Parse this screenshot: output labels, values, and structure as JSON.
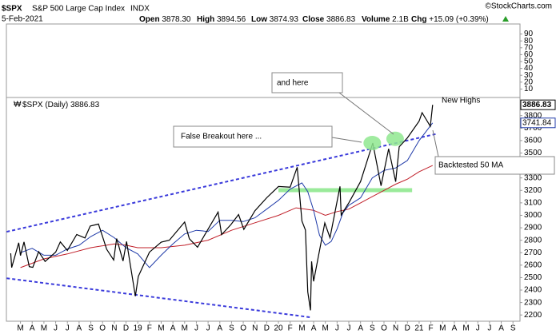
{
  "chart_data": {
    "type": "stock",
    "title": "$SPX",
    "subtitle": "S&P 500 Large Cap Index",
    "exchange": "INDX",
    "date": "5-Feb-2021",
    "source": "©StockCharts.com",
    "stats": [
      {
        "label": "Open",
        "value": "3878.30"
      },
      {
        "label": "High",
        "value": "3894.56"
      },
      {
        "label": "Low",
        "value": "3874.93"
      },
      {
        "label": "Close",
        "value": "3886.83"
      },
      {
        "label": "Volume",
        "value": "2.1B"
      },
      {
        "label": "Chg",
        "value": "+15.09 (+0.39%)"
      }
    ],
    "top_panel": {
      "ylim": [
        0,
        100
      ],
      "yticks": [
        90,
        80,
        70,
        60,
        50,
        40,
        30,
        20,
        10
      ]
    },
    "xlim": [
      0.8,
      44.6
    ],
    "xticks": [
      {
        "value": 2,
        "label": "M"
      },
      {
        "value": 3,
        "label": "A"
      },
      {
        "value": 4,
        "label": "M"
      },
      {
        "value": 5,
        "label": "J"
      },
      {
        "value": 6,
        "label": "J"
      },
      {
        "value": 7,
        "label": "A"
      },
      {
        "value": 8,
        "label": "S"
      },
      {
        "value": 9,
        "label": "O"
      },
      {
        "value": 10,
        "label": "N"
      },
      {
        "value": 11,
        "label": "D"
      },
      {
        "value": 12,
        "label": "19"
      },
      {
        "value": 13,
        "label": "F"
      },
      {
        "value": 14,
        "label": "M"
      },
      {
        "value": 15,
        "label": "A"
      },
      {
        "value": 16,
        "label": "M"
      },
      {
        "value": 17,
        "label": "J"
      },
      {
        "value": 18,
        "label": "J"
      },
      {
        "value": 19,
        "label": "A"
      },
      {
        "value": 20,
        "label": "S"
      },
      {
        "value": 21,
        "label": "O"
      },
      {
        "value": 22,
        "label": "N"
      },
      {
        "value": 23,
        "label": "D"
      },
      {
        "value": 24,
        "label": "20"
      },
      {
        "value": 25,
        "label": "F"
      },
      {
        "value": 26,
        "label": "M"
      },
      {
        "value": 27,
        "label": "A"
      },
      {
        "value": 28,
        "label": "M"
      },
      {
        "value": 29,
        "label": "J"
      },
      {
        "value": 30,
        "label": "J"
      },
      {
        "value": 31,
        "label": "A"
      },
      {
        "value": 32,
        "label": "S"
      },
      {
        "value": 33,
        "label": "O"
      },
      {
        "value": 34,
        "label": "N"
      },
      {
        "value": 35,
        "label": "D"
      },
      {
        "value": 36,
        "label": "21"
      },
      {
        "value": 37,
        "label": "F"
      },
      {
        "value": 38,
        "label": "M"
      },
      {
        "value": 39,
        "label": "A"
      },
      {
        "value": 40,
        "label": "M"
      },
      {
        "value": 41,
        "label": "J"
      },
      {
        "value": 42,
        "label": "J"
      },
      {
        "value": 43,
        "label": "A"
      },
      {
        "value": 44,
        "label": "S"
      }
    ],
    "ylim": [
      2150,
      3920
    ],
    "yticks": [
      3800,
      3700,
      3600,
      3500,
      3400,
      3300,
      3200,
      3100,
      3000,
      2900,
      2800,
      2700,
      2600,
      2500,
      2400,
      2300,
      2200
    ],
    "series": [
      {
        "name": "$SPX (Daily)",
        "color": "#000000",
        "x": [
          1.17,
          1.25,
          1.85,
          2.0,
          2.3,
          2.75,
          3.05,
          3.55,
          4.1,
          5.0,
          5.4,
          6.0,
          6.8,
          7.5,
          7.95,
          8.65,
          9.35,
          9.95,
          10.2,
          10.75,
          11.05,
          11.8,
          12.05,
          13.0,
          14.0,
          14.7,
          16.0,
          16.4,
          17.1,
          18.85,
          19.15,
          19.95,
          20.6,
          21.05,
          22.0,
          23.0,
          24.0,
          25.0,
          25.6,
          26.0,
          26.3,
          26.5,
          26.73,
          26.83,
          27.0,
          27.95,
          28.4,
          29.25,
          29.35,
          30.0,
          31.0,
          32.05,
          32.75,
          33.4,
          34.0,
          34.3,
          35.0,
          36.0,
          36.25,
          36.95,
          37.15
        ],
        "values": [
          2695,
          2581,
          2780,
          2677,
          2786,
          2588,
          2582,
          2708,
          2630,
          2705,
          2787,
          2718,
          2846,
          2818,
          2914,
          2930,
          2728,
          2641,
          2813,
          2633,
          2790,
          2351,
          2510,
          2704,
          2784,
          2800,
          2946,
          2812,
          2744,
          3026,
          2845,
          2926,
          3006,
          2887,
          3037,
          3141,
          3231,
          3226,
          3386,
          2954,
          2882,
          2386,
          2237,
          2630,
          2470,
          2939,
          2820,
          3232,
          3002,
          3100,
          3271,
          3580,
          3237,
          3534,
          3270,
          3550,
          3622,
          3756,
          3824,
          3714,
          3886.83
        ]
      },
      {
        "color": "#1f3aa8",
        "x": [
          2,
          3,
          4,
          5,
          6,
          7,
          8,
          9,
          10,
          11,
          12,
          13,
          14,
          15,
          16,
          17,
          18,
          19,
          20,
          21,
          22,
          23,
          24,
          25,
          26,
          26.5,
          27,
          27.5,
          28,
          28.5,
          29,
          29.5,
          30,
          31,
          32,
          33,
          34,
          35,
          36,
          37.15
        ],
        "values": [
          2700,
          2735,
          2680,
          2680,
          2730,
          2760,
          2830,
          2880,
          2820,
          2740,
          2690,
          2580,
          2680,
          2770,
          2850,
          2880,
          2870,
          2960,
          2960,
          2950,
          2980,
          3050,
          3120,
          3210,
          3260,
          3190,
          3040,
          2840,
          2760,
          2790,
          2890,
          3020,
          3080,
          3140,
          3300,
          3360,
          3380,
          3440,
          3600,
          3741.84
        ]
      },
      {
        "color": "#c0202a",
        "x": [
          2,
          4,
          6,
          8,
          10,
          11,
          12,
          14,
          16,
          18,
          20,
          22,
          24,
          25.5,
          27,
          28,
          29,
          30,
          31,
          32,
          33,
          34,
          35,
          36,
          37.15
        ],
        "values": [
          2580,
          2650,
          2690,
          2740,
          2770,
          2760,
          2740,
          2740,
          2760,
          2800,
          2880,
          2940,
          3000,
          3060,
          3040,
          3000,
          3030,
          3050,
          3100,
          3150,
          3200,
          3250,
          3290,
          3350,
          3400
        ]
      }
    ],
    "channel_lines": {
      "color": "#3a3adb",
      "lines": [
        {
          "x": [
            0.82,
            37.4
          ],
          "y": [
            2868,
            3652
          ]
        },
        {
          "x": [
            0.82,
            26.86
          ],
          "y": [
            2495,
            2180
          ]
        }
      ]
    },
    "support_line": {
      "color": "#8fe88f",
      "x": [
        24,
        35.4
      ],
      "y": [
        3202,
        3202
      ]
    },
    "highlights": {
      "color": "#8fe88f",
      "x": [
        32.0,
        33.95
      ],
      "y": [
        3580,
        3614
      ]
    },
    "annotations": [
      "and here",
      "False Breakout here ...",
      "New Highs",
      "Backtested 50 MA"
    ]
  }
}
